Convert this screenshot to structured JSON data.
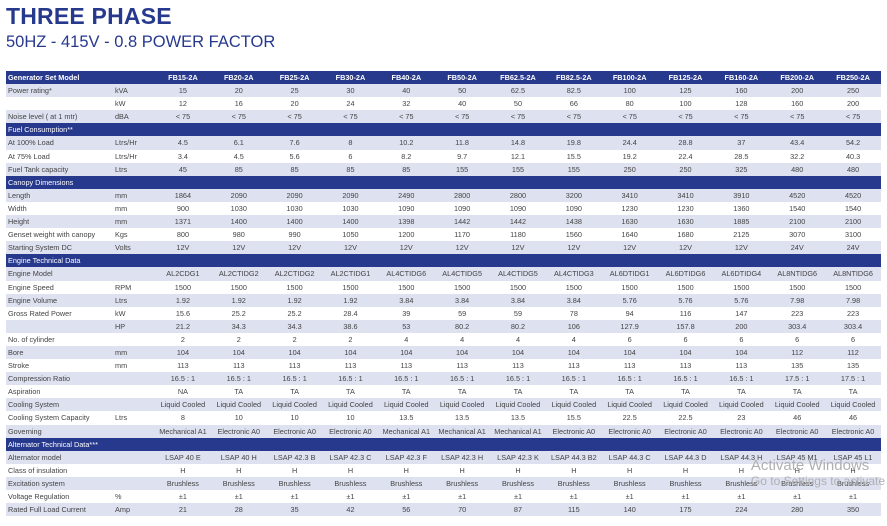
{
  "title": "THREE PHASE",
  "subtitle": "50HZ - 415V - 0.8 POWER FACTOR",
  "header": {
    "label": "Generator Set Model",
    "models": [
      "FB15-2A",
      "FB20-2A",
      "FB25-2A",
      "FB30-2A",
      "FB40-2A",
      "FB50-2A",
      "FB62.5-2A",
      "FB82.5-2A",
      "FB100-2A",
      "FB125-2A",
      "FB160-2A",
      "FB200-2A",
      "FB250-2A"
    ]
  },
  "rows": [
    {
      "type": "data",
      "label": "Power rating*",
      "unit": "kVA",
      "values": [
        "15",
        "20",
        "25",
        "30",
        "40",
        "50",
        "62.5",
        "82.5",
        "100",
        "125",
        "160",
        "200",
        "250"
      ]
    },
    {
      "type": "data",
      "label": "",
      "unit": "kW",
      "values": [
        "12",
        "16",
        "20",
        "24",
        "32",
        "40",
        "50",
        "66",
        "80",
        "100",
        "128",
        "160",
        "200"
      ]
    },
    {
      "type": "data",
      "label": "Noise level ( at 1 mtr)",
      "unit": "dBA",
      "values": [
        "< 75",
        "< 75",
        "< 75",
        "< 75",
        "< 75",
        "< 75",
        "< 75",
        "< 75",
        "< 75",
        "< 75",
        "< 75",
        "< 75",
        "< 75"
      ]
    },
    {
      "type": "section",
      "label": "Fuel Consumption**"
    },
    {
      "type": "data",
      "label": "At 100% Load",
      "unit": "Ltrs/Hr",
      "values": [
        "4.5",
        "6.1",
        "7.6",
        "8",
        "10.2",
        "11.8",
        "14.8",
        "19.8",
        "24.4",
        "28.8",
        "37",
        "43.4",
        "54.2"
      ]
    },
    {
      "type": "data",
      "label": "At 75% Load",
      "unit": "Ltrs/Hr",
      "values": [
        "3.4",
        "4.5",
        "5.6",
        "6",
        "8.2",
        "9.7",
        "12.1",
        "15.5",
        "19.2",
        "22.4",
        "28.5",
        "32.2",
        "40.3"
      ]
    },
    {
      "type": "data",
      "label": "Fuel Tank capacity",
      "unit": "Ltrs",
      "values": [
        "45",
        "85",
        "85",
        "85",
        "85",
        "155",
        "155",
        "155",
        "250",
        "250",
        "325",
        "480",
        "480"
      ]
    },
    {
      "type": "section",
      "label": "Canopy Dimensions"
    },
    {
      "type": "data",
      "label": "Length",
      "unit": "mm",
      "values": [
        "1864",
        "2090",
        "2090",
        "2090",
        "2490",
        "2800",
        "2800",
        "3200",
        "3410",
        "3410",
        "3910",
        "4520",
        "4520"
      ]
    },
    {
      "type": "data",
      "label": "Width",
      "unit": "mm",
      "values": [
        "900",
        "1030",
        "1030",
        "1030",
        "1090",
        "1090",
        "1090",
        "1090",
        "1230",
        "1230",
        "1360",
        "1540",
        "1540"
      ]
    },
    {
      "type": "data",
      "label": "Height",
      "unit": "mm",
      "values": [
        "1371",
        "1400",
        "1400",
        "1400",
        "1398",
        "1442",
        "1442",
        "1438",
        "1630",
        "1630",
        "1885",
        "2100",
        "2100"
      ]
    },
    {
      "type": "data",
      "label": "Genset weight with canopy",
      "unit": "Kgs",
      "values": [
        "800",
        "980",
        "990",
        "1050",
        "1200",
        "1170",
        "1180",
        "1560",
        "1640",
        "1680",
        "2125",
        "3070",
        "3100"
      ]
    },
    {
      "type": "data",
      "label": "Starting System DC",
      "unit": "Volts",
      "values": [
        "12V",
        "12V",
        "12V",
        "12V",
        "12V",
        "12V",
        "12V",
        "12V",
        "12V",
        "12V",
        "12V",
        "24V",
        "24V"
      ]
    },
    {
      "type": "section",
      "label": "Engine Technical Data"
    },
    {
      "type": "data",
      "label": "Engine Model",
      "unit": "",
      "values": [
        "AL2CDG1",
        "AL2CTIDG2",
        "AL2CTIDG2",
        "AL2CTIDG1",
        "AL4CTIDG6",
        "AL4CTIDG5",
        "AL4CTIDG5",
        "AL4CTIDG3",
        "AL6DTIDG1",
        "AL6DTIDG6",
        "AL6DTIDG4",
        "AL8NTIDG6",
        "AL8NTIDG6"
      ]
    },
    {
      "type": "data",
      "label": "Engine Speed",
      "unit": "RPM",
      "values": [
        "1500",
        "1500",
        "1500",
        "1500",
        "1500",
        "1500",
        "1500",
        "1500",
        "1500",
        "1500",
        "1500",
        "1500",
        "1500"
      ]
    },
    {
      "type": "data",
      "label": "Engine Volume",
      "unit": "Ltrs",
      "values": [
        "1.92",
        "1.92",
        "1.92",
        "1.92",
        "3.84",
        "3.84",
        "3.84",
        "3.84",
        "5.76",
        "5.76",
        "5.76",
        "7.98",
        "7.98"
      ]
    },
    {
      "type": "data",
      "label": "Gross Rated Power",
      "unit": "kW",
      "values": [
        "15.6",
        "25.2",
        "25.2",
        "28.4",
        "39",
        "59",
        "59",
        "78",
        "94",
        "116",
        "147",
        "223",
        "223"
      ]
    },
    {
      "type": "data",
      "label": "",
      "unit": "HP",
      "values": [
        "21.2",
        "34.3",
        "34.3",
        "38.6",
        "53",
        "80.2",
        "80.2",
        "106",
        "127.9",
        "157.8",
        "200",
        "303.4",
        "303.4"
      ]
    },
    {
      "type": "data",
      "label": "No. of cylinder",
      "unit": "",
      "values": [
        "2",
        "2",
        "2",
        "2",
        "4",
        "4",
        "4",
        "4",
        "6",
        "6",
        "6",
        "6",
        "6"
      ]
    },
    {
      "type": "data",
      "label": "Bore",
      "unit": "mm",
      "values": [
        "104",
        "104",
        "104",
        "104",
        "104",
        "104",
        "104",
        "104",
        "104",
        "104",
        "104",
        "112",
        "112"
      ]
    },
    {
      "type": "data",
      "label": "Stroke",
      "unit": "mm",
      "values": [
        "113",
        "113",
        "113",
        "113",
        "113",
        "113",
        "113",
        "113",
        "113",
        "113",
        "113",
        "135",
        "135"
      ]
    },
    {
      "type": "data",
      "label": "Compression Ratio",
      "unit": "",
      "values": [
        "16.5 : 1",
        "16.5 : 1",
        "16.5 : 1",
        "16.5 : 1",
        "16.5 : 1",
        "16.5 : 1",
        "16.5 : 1",
        "16.5 : 1",
        "16.5 : 1",
        "16.5 : 1",
        "16.5 : 1",
        "17.5 : 1",
        "17.5 : 1"
      ]
    },
    {
      "type": "data",
      "label": "Aspiration",
      "unit": "",
      "values": [
        "NA",
        "TA",
        "TA",
        "TA",
        "TA",
        "TA",
        "TA",
        "TA",
        "TA",
        "TA",
        "TA",
        "TA",
        "TA"
      ]
    },
    {
      "type": "data",
      "label": "Cooling System",
      "unit": "",
      "values": [
        "Liquid Cooled",
        "Liquid Cooled",
        "Liquid Cooled",
        "Liquid Cooled",
        "Liquid Cooled",
        "Liquid Cooled",
        "Liquid Cooled",
        "Liquid Cooled",
        "Liquid Cooled",
        "Liquid Cooled",
        "Liquid Cooled",
        "Liquid Cooled",
        "Liquid Cooled"
      ]
    },
    {
      "type": "data",
      "label": "Cooling System Capacity",
      "unit": "Ltrs",
      "values": [
        "8",
        "10",
        "10",
        "10",
        "13.5",
        "13.5",
        "13.5",
        "15.5",
        "22.5",
        "22.5",
        "23",
        "46",
        "46"
      ]
    },
    {
      "type": "data",
      "label": "Governing",
      "unit": "",
      "values": [
        "Mechanical A1",
        "Electronic A0",
        "Electronic A0",
        "Electronic A0",
        "Mechanical A1",
        "Mechanical A1",
        "Mechanical A1",
        "Electronic A0",
        "Electronic A0",
        "Electronic A0",
        "Electronic A0",
        "Electronic A0",
        "Electronic A0"
      ]
    },
    {
      "type": "section",
      "label": "Alternator Technical Data***"
    },
    {
      "type": "data",
      "label": "Alternator model",
      "unit": "",
      "values": [
        "LSAP 40 E",
        "LSAP 40 H",
        "LSAP 42.3 B",
        "LSAP 42.3 C",
        "LSAP 42.3 F",
        "LSAP 42.3 H",
        "LSAP 42.3 K",
        "LSAP 44.3 B2",
        "LSAP 44.3 C",
        "LSAP 44.3 D",
        "LSAP 44.3 H",
        "LSAP 45 M1",
        "LSAP 45 L1"
      ]
    },
    {
      "type": "data",
      "label": "Class of insulation",
      "unit": "",
      "values": [
        "H",
        "H",
        "H",
        "H",
        "H",
        "H",
        "H",
        "H",
        "H",
        "H",
        "H",
        "H",
        "H"
      ]
    },
    {
      "type": "data",
      "label": "Excitation system",
      "unit": "",
      "values": [
        "Brushless",
        "Brushless",
        "Brushless",
        "Brushless",
        "Brushless",
        "Brushless",
        "Brushless",
        "Brushless",
        "Brushless",
        "Brushless",
        "Brushless",
        "Brushless",
        "Brushless"
      ]
    },
    {
      "type": "data",
      "label": "Voltage Regulation",
      "unit": "%",
      "values": [
        "±1",
        "±1",
        "±1",
        "±1",
        "±1",
        "±1",
        "±1",
        "±1",
        "±1",
        "±1",
        "±1",
        "±1",
        "±1"
      ]
    },
    {
      "type": "data",
      "label": "Rated Full Load Current",
      "unit": "Amp",
      "values": [
        "21",
        "28",
        "35",
        "42",
        "56",
        "70",
        "87",
        "115",
        "140",
        "175",
        "224",
        "280",
        "350"
      ]
    }
  ],
  "watermark": {
    "line1": "Activate Windows",
    "line2": "Go to Settings to activate"
  },
  "colors": {
    "header": "#27398d",
    "band": "#dde1f0"
  }
}
